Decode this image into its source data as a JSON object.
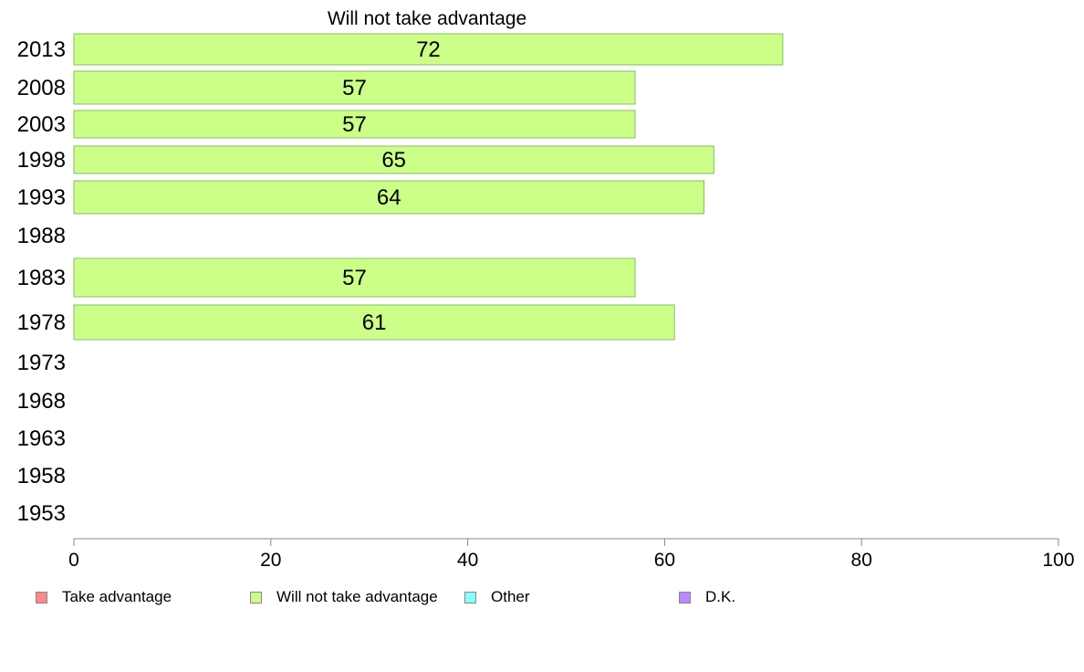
{
  "chart_data": {
    "type": "bar",
    "orientation": "horizontal",
    "title": "Will not take advantage",
    "categories": [
      "2013",
      "2008",
      "2003",
      "1998",
      "1993",
      "1988",
      "1983",
      "1978",
      "1973",
      "1968",
      "1963",
      "1958",
      "1953"
    ],
    "series": [
      {
        "name": "Will not take advantage",
        "color": "#ccff88",
        "values": [
          72,
          57,
          57,
          65,
          64,
          null,
          57,
          61,
          null,
          null,
          null,
          null,
          null
        ],
        "labels": [
          "72",
          "57",
          "57",
          "65",
          "64",
          "",
          "57",
          "61",
          "",
          "",
          "",
          "",
          ""
        ]
      }
    ],
    "xlim": [
      0,
      100
    ],
    "xticks": [
      "0",
      "20",
      "40",
      "60",
      "80",
      "100"
    ],
    "xlabel": "",
    "ylabel": "",
    "grid": false,
    "legend": {
      "placement": "bottom",
      "items": [
        {
          "label": "Take advantage",
          "color": "#ff8888"
        },
        {
          "label": "Will not take advantage",
          "color": "#ccff88"
        },
        {
          "label": "Other",
          "color": "#88ffff"
        },
        {
          "label": "D.K.",
          "color": "#bb88ff"
        }
      ]
    }
  }
}
